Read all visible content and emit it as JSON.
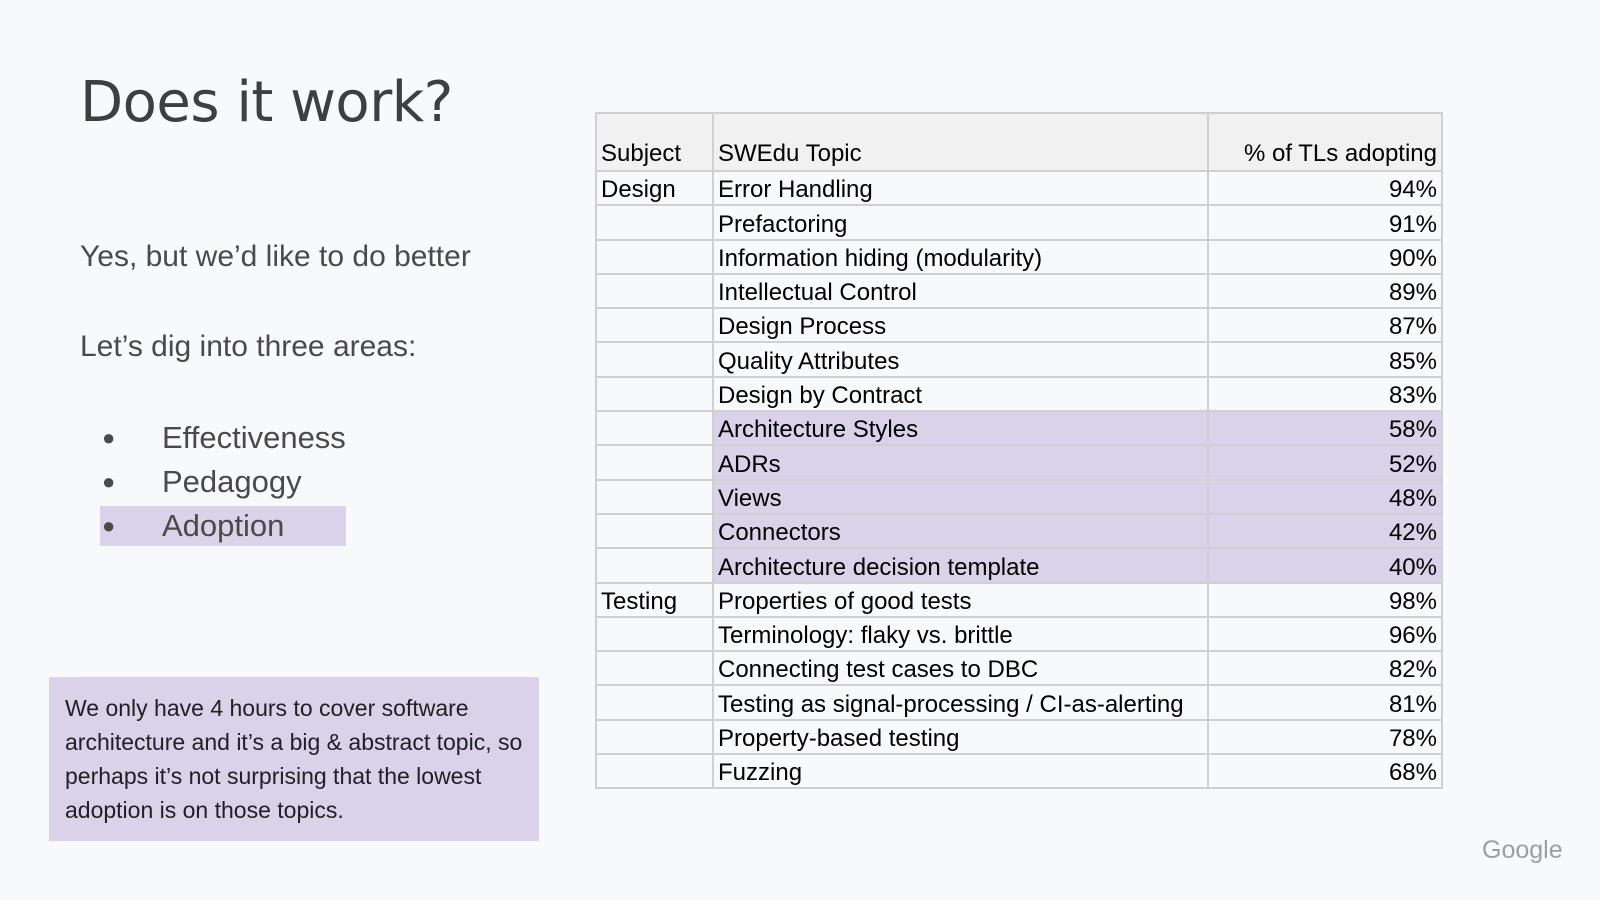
{
  "slide": {
    "title": "Does it work?",
    "line1": "Yes, but we’d like to do better",
    "line2": "Let’s dig into three areas:",
    "bullet_glyph": "●",
    "bullets": [
      "Effectiveness",
      "Pedagogy",
      "Adoption"
    ],
    "callout": "We only have 4 hours to cover software architecture and it’s a big & abstract topic, so perhaps it’s not surprising that the lowest adoption is on those topics.",
    "logo": "Google",
    "highlight_color": "#d9d2e9"
  },
  "table": {
    "headers": [
      "Subject",
      "SWEdu Topic",
      "% of TLs adopting"
    ],
    "rows": [
      {
        "subject": "Design",
        "topic": "Error Handling",
        "pct": "94%"
      },
      {
        "subject": "",
        "topic": "Prefactoring",
        "pct": "91%"
      },
      {
        "subject": "",
        "topic": "Information hiding (modularity)",
        "pct": "90%"
      },
      {
        "subject": "",
        "topic": "Intellectual Control",
        "pct": "89%"
      },
      {
        "subject": "",
        "topic": "Design Process",
        "pct": "87%"
      },
      {
        "subject": "",
        "topic": "Quality Attributes",
        "pct": "85%"
      },
      {
        "subject": "",
        "topic": "Design by Contract",
        "pct": "83%"
      },
      {
        "subject": "",
        "topic": "Architecture Styles",
        "pct": "58%"
      },
      {
        "subject": "",
        "topic": "ADRs",
        "pct": "52%"
      },
      {
        "subject": "",
        "topic": "Views",
        "pct": "48%"
      },
      {
        "subject": "",
        "topic": "Connectors",
        "pct": "42%"
      },
      {
        "subject": "",
        "topic": "Architecture decision template",
        "pct": "40%"
      },
      {
        "subject": "Testing",
        "topic": "Properties of good tests",
        "pct": "98%"
      },
      {
        "subject": "",
        "topic": "Terminology: flaky vs. brittle",
        "pct": "96%"
      },
      {
        "subject": "",
        "topic": "Connecting test cases to DBC",
        "pct": "82%"
      },
      {
        "subject": "",
        "topic": "Testing as signal-processing / CI-as-alerting",
        "pct": "81%"
      },
      {
        "subject": "",
        "topic": "Property-based testing",
        "pct": "78%"
      },
      {
        "subject": "",
        "topic": "Fuzzing",
        "pct": "68%"
      }
    ]
  }
}
